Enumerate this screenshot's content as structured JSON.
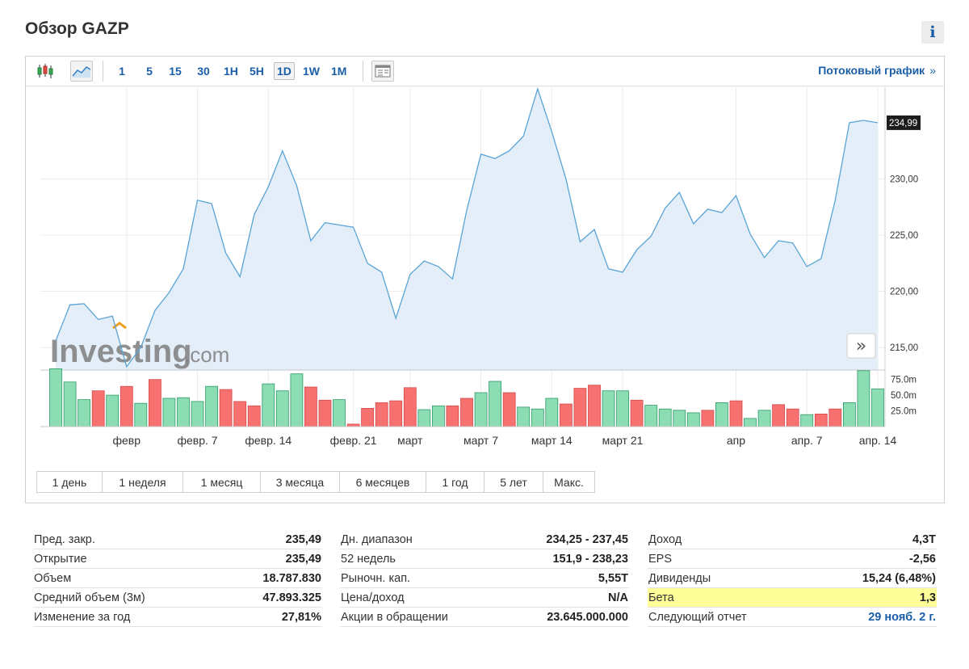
{
  "title": "Обзор GAZP",
  "info_label": "i",
  "toolbar": {
    "candles_icon": "candlestick-icon",
    "area_icon": "area-chart-icon",
    "timeframes": [
      "1",
      "5",
      "15",
      "30",
      "1H",
      "5H",
      "1D",
      "1W",
      "1M"
    ],
    "active_timeframe": "1D",
    "table_icon": "table-icon",
    "stream_link": "Потоковый график",
    "stream_chevron": "»"
  },
  "expand_label": "»",
  "watermark": {
    "main": "Investing",
    "suffix": ".com"
  },
  "chart_data": {
    "type": "area",
    "ticker": "GAZP",
    "last_price_label": "234,99",
    "y_axis": {
      "min": 213,
      "max": 238,
      "ticks": [
        215,
        220,
        225,
        230
      ],
      "tick_labels": [
        "215,00",
        "220,00",
        "225,00",
        "230,00"
      ]
    },
    "x_labels": [
      {
        "label": "февр",
        "index": 5
      },
      {
        "label": "февр. 7",
        "index": 10
      },
      {
        "label": "февр. 14",
        "index": 15
      },
      {
        "label": "февр. 21",
        "index": 21
      },
      {
        "label": "март",
        "index": 25
      },
      {
        "label": "март 7",
        "index": 30
      },
      {
        "label": "март 14",
        "index": 35
      },
      {
        "label": "март 21",
        "index": 40
      },
      {
        "label": "апр",
        "index": 48
      },
      {
        "label": "апр. 7",
        "index": 53
      },
      {
        "label": "апр. 14",
        "index": 58
      }
    ],
    "price": [
      215.6,
      218.8,
      218.9,
      217.5,
      217.8,
      213.3,
      215.0,
      218.3,
      219.9,
      222.0,
      228.1,
      227.8,
      223.4,
      221.3,
      226.8,
      229.3,
      232.5,
      229.4,
      224.5,
      226.1,
      225.9,
      225.7,
      222.5,
      221.7,
      217.6,
      221.5,
      222.7,
      222.2,
      221.1,
      227.2,
      232.2,
      231.8,
      232.5,
      233.8,
      238.0,
      234.2,
      230.0,
      224.4,
      225.5,
      222.0,
      221.7,
      223.7,
      224.9,
      227.4,
      228.8,
      226.0,
      227.3,
      227.0,
      228.5,
      225.1,
      223.0,
      224.5,
      224.3,
      222.2,
      222.9,
      228.1,
      235.0,
      235.2,
      234.99
    ],
    "volume_axis": {
      "ticks": [
        25,
        50,
        75
      ],
      "tick_labels": [
        "25.0m",
        "50.0m",
        "75.0m"
      ],
      "max": 90
    },
    "volume": [
      92,
      71,
      43,
      57,
      50,
      64,
      37,
      75,
      45,
      46,
      40,
      64,
      59,
      40,
      33,
      68,
      57,
      84,
      63,
      42,
      43,
      4,
      29,
      38,
      41,
      62,
      27,
      33,
      33,
      45,
      54,
      72,
      54,
      31,
      28,
      45,
      36,
      61,
      66,
      57,
      57,
      42,
      34,
      28,
      26,
      22,
      26,
      38,
      41,
      13,
      26,
      35,
      28,
      19,
      20,
      28,
      38,
      89,
      60
    ],
    "volume_direction": [
      "up",
      "up",
      "up",
      "down",
      "up",
      "down",
      "up",
      "down",
      "up",
      "up",
      "up",
      "up",
      "down",
      "down",
      "down",
      "up",
      "up",
      "up",
      "down",
      "down",
      "up",
      "down",
      "down",
      "down",
      "down",
      "down",
      "up",
      "up",
      "down",
      "down",
      "up",
      "up",
      "down",
      "up",
      "up",
      "up",
      "down",
      "down",
      "down",
      "up",
      "up",
      "down",
      "up",
      "up",
      "up",
      "up",
      "down",
      "up",
      "down",
      "up",
      "up",
      "down",
      "down",
      "up",
      "down",
      "down",
      "up",
      "up",
      "up"
    ],
    "colors": {
      "line": "#5aa4d6",
      "fill": "#e3eef8",
      "up": "#8cdcb4",
      "up_stroke": "#2e9a68",
      "down": "#f77171",
      "down_stroke": "#d24a4a"
    }
  },
  "periods": [
    "1 день",
    "1 неделя",
    "1 месяц",
    "3 месяца",
    "6 месяцев",
    "1 год",
    "5 лет",
    "Макс."
  ],
  "stats": [
    [
      {
        "label": "Пред. закр.",
        "value": "235,49"
      },
      {
        "label": "Открытие",
        "value": "235,49"
      },
      {
        "label": "Объем",
        "value": "18.787.830"
      },
      {
        "label": "Средний объем (3м)",
        "value": "47.893.325"
      },
      {
        "label": "Изменение за год",
        "value": "27,81%"
      }
    ],
    [
      {
        "label": "Дн. диапазон",
        "value": "234,25 - 237,45"
      },
      {
        "label": "52 недель",
        "value": "151,9 - 238,23"
      },
      {
        "label": "Рыночн. кап.",
        "value": "5,55T"
      },
      {
        "label": "Цена/доход",
        "value": "N/A"
      },
      {
        "label": "Акции в обращении",
        "value": "23.645.000.000"
      }
    ],
    [
      {
        "label": "Доход",
        "value": "4,3T"
      },
      {
        "label": "EPS",
        "value": "-2,56"
      },
      {
        "label": "Дивиденды",
        "value": "15,24 (6,48%)"
      },
      {
        "label": "Бета",
        "value": "1,3",
        "highlight": true
      },
      {
        "label": "Следующий отчет",
        "value": "29 нояб. 2 г.",
        "link": true
      }
    ]
  ]
}
